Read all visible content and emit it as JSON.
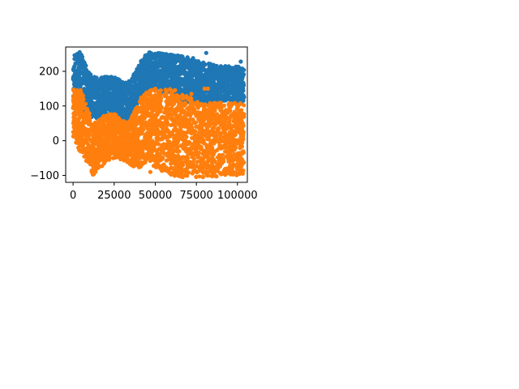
{
  "chart_data": {
    "type": "scatter",
    "title": "",
    "xlabel": "",
    "ylabel": "",
    "xlim": [
      -4500,
      106000
    ],
    "ylim": [
      -120,
      270
    ],
    "grid": false,
    "legend": "none",
    "x_ticks": [
      0,
      25000,
      50000,
      75000,
      100000
    ],
    "x_tick_labels": [
      "0",
      "25000",
      "50000",
      "75000",
      "100000"
    ],
    "y_ticks": [
      -100,
      0,
      100,
      200
    ],
    "y_tick_labels": [
      "−100",
      "0",
      "100",
      "200"
    ],
    "series": [
      {
        "color": "#1f77b4",
        "envelope": [
          {
            "x": 0,
            "lo": 110,
            "hi": 255
          },
          {
            "x": 5000,
            "lo": 90,
            "hi": 250
          },
          {
            "x": 10000,
            "lo": 70,
            "hi": 195
          },
          {
            "x": 15000,
            "lo": 60,
            "hi": 180
          },
          {
            "x": 20000,
            "lo": 75,
            "hi": 185
          },
          {
            "x": 25000,
            "lo": 85,
            "hi": 185
          },
          {
            "x": 30000,
            "lo": 55,
            "hi": 170
          },
          {
            "x": 35000,
            "lo": 65,
            "hi": 175
          },
          {
            "x": 40000,
            "lo": 110,
            "hi": 220
          },
          {
            "x": 45000,
            "lo": 140,
            "hi": 255
          },
          {
            "x": 50000,
            "lo": 150,
            "hi": 255
          },
          {
            "x": 55000,
            "lo": 140,
            "hi": 250
          },
          {
            "x": 60000,
            "lo": 140,
            "hi": 250
          },
          {
            "x": 65000,
            "lo": 115,
            "hi": 245
          },
          {
            "x": 70000,
            "lo": 110,
            "hi": 240
          },
          {
            "x": 75000,
            "lo": 100,
            "hi": 230
          },
          {
            "x": 80000,
            "lo": 105,
            "hi": 225
          },
          {
            "x": 85000,
            "lo": 110,
            "hi": 220
          },
          {
            "x": 90000,
            "lo": 115,
            "hi": 215
          },
          {
            "x": 95000,
            "lo": 115,
            "hi": 215
          },
          {
            "x": 100000,
            "lo": 110,
            "hi": 215
          },
          {
            "x": 104000,
            "lo": 110,
            "hi": 210
          }
        ],
        "outliers": [
          {
            "x": 81000,
            "y": 253
          },
          {
            "x": 73000,
            "y": 238
          },
          {
            "x": 102000,
            "y": 228
          },
          {
            "x": 4000,
            "y": 255
          }
        ]
      },
      {
        "color": "#ff7f0e",
        "envelope": [
          {
            "x": 0,
            "lo": 10,
            "hi": 150
          },
          {
            "x": 5000,
            "lo": -40,
            "hi": 145
          },
          {
            "x": 10000,
            "lo": -70,
            "hi": 80
          },
          {
            "x": 12000,
            "lo": -100,
            "hi": 50
          },
          {
            "x": 15000,
            "lo": -90,
            "hi": 60
          },
          {
            "x": 20000,
            "lo": -60,
            "hi": 75
          },
          {
            "x": 25000,
            "lo": -50,
            "hi": 80
          },
          {
            "x": 30000,
            "lo": -55,
            "hi": 55
          },
          {
            "x": 35000,
            "lo": -70,
            "hi": 60
          },
          {
            "x": 40000,
            "lo": -80,
            "hi": 120
          },
          {
            "x": 45000,
            "lo": -60,
            "hi": 145
          },
          {
            "x": 50000,
            "lo": -80,
            "hi": 150
          },
          {
            "x": 55000,
            "lo": -90,
            "hi": 150
          },
          {
            "x": 60000,
            "lo": -100,
            "hi": 150
          },
          {
            "x": 65000,
            "lo": -105,
            "hi": 140
          },
          {
            "x": 70000,
            "lo": -105,
            "hi": 130
          },
          {
            "x": 75000,
            "lo": -105,
            "hi": 115
          },
          {
            "x": 80000,
            "lo": -105,
            "hi": 110
          },
          {
            "x": 85000,
            "lo": -105,
            "hi": 110
          },
          {
            "x": 90000,
            "lo": -100,
            "hi": 110
          },
          {
            "x": 95000,
            "lo": -100,
            "hi": 110
          },
          {
            "x": 100000,
            "lo": -100,
            "hi": 110
          },
          {
            "x": 104000,
            "lo": -95,
            "hi": 105
          }
        ],
        "outliers": [
          {
            "x": 82000,
            "y": 150
          },
          {
            "x": 80000,
            "y": 150
          },
          {
            "x": 72000,
            "y": 135
          },
          {
            "x": 47000,
            "y": -90
          }
        ]
      }
    ]
  }
}
